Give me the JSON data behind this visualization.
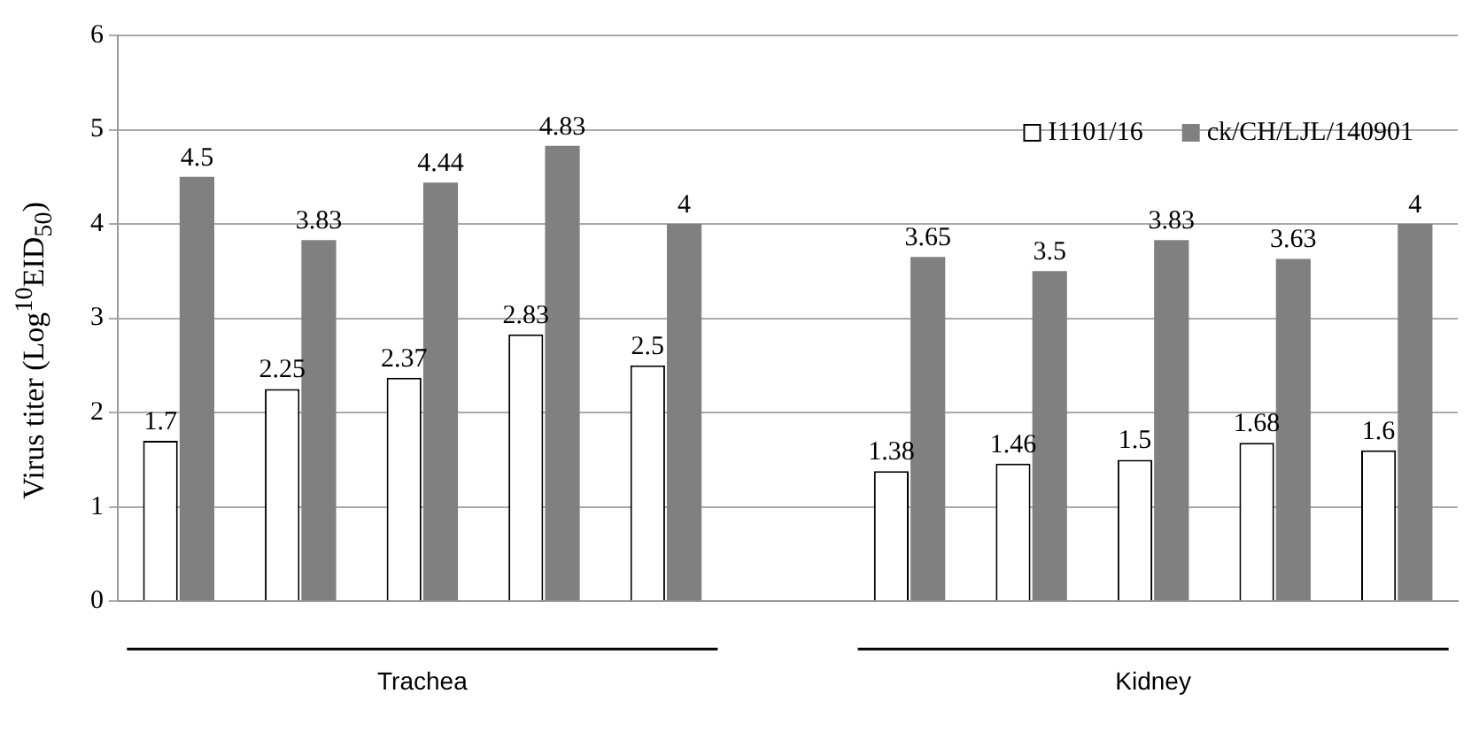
{
  "chart_data": {
    "type": "bar",
    "ylabel": "Virus titer (Log$^{10}$EID$_{50}$)",
    "categories": [
      null,
      null,
      null,
      null,
      null,
      null,
      null,
      null,
      null,
      null,
      null
    ],
    "series": [
      {
        "name": "I1101/16",
        "color": "#ffffff",
        "values": [
          1.7,
          2.25,
          2.37,
          2.83,
          2.5,
          null,
          1.38,
          1.46,
          1.5,
          1.68,
          1.6
        ]
      },
      {
        "name": "ck/CH/LJL/140901",
        "color": "#808080",
        "values": [
          4.5,
          3.83,
          4.44,
          4.83,
          4,
          null,
          3.65,
          3.5,
          3.83,
          3.63,
          4
        ]
      }
    ],
    "ylim": [
      0,
      6
    ],
    "yticks": [
      0,
      1,
      2,
      3,
      4,
      5,
      6
    ],
    "grid": "y",
    "legend": "top right",
    "data_labels": true,
    "annotations": [
      "Trachea",
      "Kidney"
    ]
  }
}
